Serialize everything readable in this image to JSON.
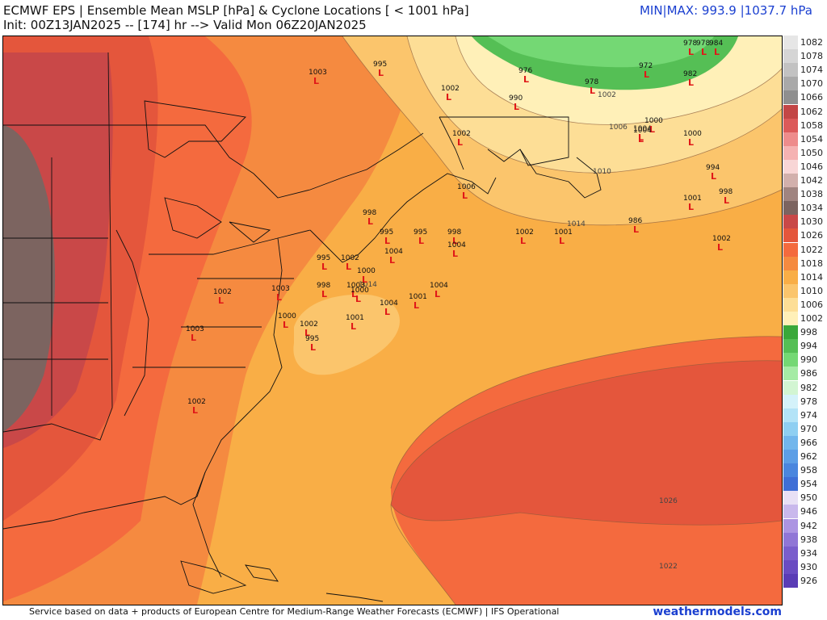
{
  "header": {
    "title_line1": "ECMWF EPS | Ensemble Mean MSLP [hPa] & Cyclone Locations [ < 1001 hPa]",
    "title_line2": "Init: 00Z13JAN2025 -- [174] hr --> Valid Mon 06Z20JAN2025",
    "minmax": "MIN|MAX: 993.9 |1037.7 hPa"
  },
  "footer": {
    "credit": "Service based on data + products of European Centre for Medium-Range Weather Forecasts (ECMWF) | IFS Operational",
    "brand": "weathermodels.com"
  },
  "colorbar": {
    "levels": [
      {
        "label": "1082",
        "color": "#e6e6e6"
      },
      {
        "label": "1078",
        "color": "#d5d5d5"
      },
      {
        "label": "1074",
        "color": "#c2c2c2"
      },
      {
        "label": "1070",
        "color": "#a9a9a9"
      },
      {
        "label": "1066",
        "color": "#8f8f8f"
      },
      {
        "label": "1062",
        "color": "#c34646"
      },
      {
        "label": "1058",
        "color": "#dc5a5a"
      },
      {
        "label": "1054",
        "color": "#ee8c8c"
      },
      {
        "label": "1050",
        "color": "#f5b2b2"
      },
      {
        "label": "1046",
        "color": "#f8d6d6"
      },
      {
        "label": "1042",
        "color": "#d2b0ac"
      },
      {
        "label": "1038",
        "color": "#a08480"
      },
      {
        "label": "1034",
        "color": "#7c6460"
      },
      {
        "label": "1030",
        "color": "#c94848"
      },
      {
        "label": "1026",
        "color": "#e4563c"
      },
      {
        "label": "1022",
        "color": "#f46a3e"
      },
      {
        "label": "1018",
        "color": "#f58a40"
      },
      {
        "label": "1014",
        "color": "#f9ae46"
      },
      {
        "label": "1010",
        "color": "#fbc56c"
      },
      {
        "label": "1006",
        "color": "#fdde96"
      },
      {
        "label": "1002",
        "color": "#fff0b8"
      },
      {
        "label": "998",
        "color": "#3aa83a"
      },
      {
        "label": "994",
        "color": "#55bf55"
      },
      {
        "label": "990",
        "color": "#74d874"
      },
      {
        "label": "986",
        "color": "#a5eba5"
      },
      {
        "label": "982",
        "color": "#d2f5d2"
      },
      {
        "label": "978",
        "color": "#d4f2fa"
      },
      {
        "label": "974",
        "color": "#b3e3f7"
      },
      {
        "label": "970",
        "color": "#8fcff2"
      },
      {
        "label": "966",
        "color": "#72b6ec"
      },
      {
        "label": "962",
        "color": "#5c9ee6"
      },
      {
        "label": "958",
        "color": "#4a86de"
      },
      {
        "label": "954",
        "color": "#3f6fd6"
      },
      {
        "label": "950",
        "color": "#e8e0f5"
      },
      {
        "label": "946",
        "color": "#c9b8ec"
      },
      {
        "label": "942",
        "color": "#ac94e2"
      },
      {
        "label": "938",
        "color": "#9076d6"
      },
      {
        "label": "934",
        "color": "#7a5ecc"
      },
      {
        "label": "930",
        "color": "#6a4cc2"
      },
      {
        "label": "926",
        "color": "#5a3cb6"
      }
    ]
  },
  "isobar_labels": [
    "1002",
    "1006",
    "1010",
    "1014",
    "1014",
    "1026",
    "1022"
  ],
  "cyclones": [
    {
      "p": "1003"
    },
    {
      "p": "995"
    },
    {
      "p": "1002"
    },
    {
      "p": "976"
    },
    {
      "p": "978"
    },
    {
      "p": "978"
    },
    {
      "p": "984"
    },
    {
      "p": "978"
    },
    {
      "p": "972"
    },
    {
      "p": "982"
    },
    {
      "p": "990"
    },
    {
      "p": "1004"
    },
    {
      "p": "1002"
    },
    {
      "p": "1000"
    },
    {
      "p": "1004"
    },
    {
      "p": "1000"
    },
    {
      "p": "994"
    },
    {
      "p": "998"
    },
    {
      "p": "1001"
    },
    {
      "p": "1006"
    },
    {
      "p": "998"
    },
    {
      "p": "995"
    },
    {
      "p": "995"
    },
    {
      "p": "998"
    },
    {
      "p": "1004"
    },
    {
      "p": "1002"
    },
    {
      "p": "1001"
    },
    {
      "p": "986"
    },
    {
      "p": "1002"
    },
    {
      "p": "1004"
    },
    {
      "p": "995"
    },
    {
      "p": "1002"
    },
    {
      "p": "1000"
    },
    {
      "p": "998"
    },
    {
      "p": "1003"
    },
    {
      "p": "1000"
    },
    {
      "p": "1001"
    },
    {
      "p": "1004"
    },
    {
      "p": "1004"
    },
    {
      "p": "1002"
    },
    {
      "p": "1003"
    },
    {
      "p": "1000"
    },
    {
      "p": "1002"
    },
    {
      "p": "995"
    },
    {
      "p": "1001"
    },
    {
      "p": "1003"
    },
    {
      "p": "1002"
    }
  ]
}
